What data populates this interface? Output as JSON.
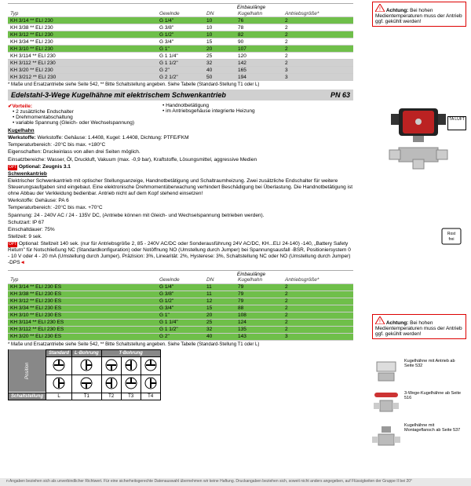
{
  "warning": {
    "label": "Achtung:",
    "text": "Bei hohen Medientemperaturen muss der Antrieb ggf. gekühlt werden!"
  },
  "table1": {
    "superheader": "Einbaulänge",
    "cols": [
      "Typ",
      "Gewinde",
      "DN",
      "Kugelhahn",
      "Antriebsgröße*"
    ],
    "rows": [
      {
        "typ": "KH 3/14 ** ELI 230",
        "g": "G 1/4\"",
        "dn": "10",
        "kh": "76",
        "an": "2",
        "cls": "row-green"
      },
      {
        "typ": "KH 3/38 ** ELI 230",
        "g": "G 3/8\"",
        "dn": "10",
        "kh": "78",
        "an": "2",
        "cls": ""
      },
      {
        "typ": "KH 3/12 ** ELI 230",
        "g": "G 1/2\"",
        "dn": "10",
        "kh": "82",
        "an": "2",
        "cls": "row-green"
      },
      {
        "typ": "KH 3/34 ** ELI 230",
        "g": "G 3/4\"",
        "dn": "15",
        "kh": "90",
        "an": "2",
        "cls": ""
      },
      {
        "typ": "KH 3/10 ** ELI 230",
        "g": "G 1\"",
        "dn": "20",
        "kh": "107",
        "an": "2",
        "cls": "row-green"
      },
      {
        "typ": "KH 3/114 ** ELI 230",
        "g": "G 1 1/4\"",
        "dn": "25",
        "kh": "120",
        "an": "2",
        "cls": ""
      },
      {
        "typ": "KH 3/112 ** ELI 230",
        "g": "G 1 1/2\"",
        "dn": "32",
        "kh": "142",
        "an": "2",
        "cls": "row-grey"
      },
      {
        "typ": "KH 3/20 ** ELI 230",
        "g": "G 2\"",
        "dn": "40",
        "kh": "165",
        "an": "3",
        "cls": "row-grey"
      },
      {
        "typ": "KH 3/212 ** ELI 230",
        "g": "G 2 1/2\"",
        "dn": "50",
        "kh": "194",
        "an": "3",
        "cls": "row-grey"
      }
    ],
    "footnote": "* Maße und Ersatzantriebe siehe Seite 542, ** Bitte Schaltstellung angeben. Siehe Tabelle (Standard-Stellung T1 oder L)"
  },
  "title_bar": {
    "title": "Edelstahl-3-Wege Kugelhähne mit elektrischem Schwenkantrieb",
    "pn": "PN 63"
  },
  "vorteile": {
    "label": "Vorteile:",
    "col1": [
      "2 zusätzliche Endschalter",
      "Drehmomentabschaltung",
      "variable Spannung (Gleich- oder Wechselspannung)"
    ],
    "col2": [
      "Handnotbetätigung",
      "im Antriebsgehäuse integrierte Heizung"
    ]
  },
  "body": {
    "kugelhahn_hd": "Kugelhahn",
    "werkstoffe1": "Werkstoffe: Gehäuse: 1.4408, Kugel: 1.4408, Dichtung: PTFE/FKM",
    "tempbereich1": "Temperaturbereich: -20°C bis max. +180°C",
    "eigenschaften": "Eigenschaften: Druckeinlass von allen drei Seiten möglich.",
    "einsatz": "Einsatzbereiche: Wasser, Öl, Druckluft, Vakuum (max. -0,9 bar), Kraftstoffe, Lösungsmittel, aggressive Medien",
    "optional1": "Optional: Zeugnis 3.1",
    "schwenk_hd": "Schwenkantrieb",
    "schwenk_body": "Elektrischer Schwenkantrieb mit optischer Stellungsanzeige, Handnotbetätigung und Schaltraumheizung. Zwei zusätzliche Endschalter für weitere Steuerungsaufgaben sind eingebaut. Eine elektronische Drehmomentüberwachung verhindert Beschädigung bei Überlastung. Die Handnotbetätigung ist ohne Abbau der Verkleidung bedienbar. Antrieb nicht auf dem Kopf stehend einsetzen!",
    "werkstoffe2": "Werkstoffe: Gehäuse: PA 6",
    "tempbereich2": "Temperaturbereich: -20°C bis max. +70°C",
    "spannung": "Spannung: 24 - 240V AC / 24 - 135V DC, (Antriebe können mit Gleich- und Wechselspannung betrieben werden).",
    "schutzart": "Schutzart: IP 67",
    "einschalt": "Einschaltdauer: 75%",
    "stellzeit": "Stellzeit: 9 sek.",
    "optional2": "Optional: Stellzeit 140 sek. (nur für Antriebsgröße 2, 85 - 240V AC/DC oder Sonderausführung 24V AC/DC, KH...ELI 24-140) -140, „Battery Safety Return\" für Notschließung NC (Standardkonfiguration) oder Notöffnung NO (Umstellung durch Jumper) bei Spannungsausfall -BSR, Positioniersystem 0 - 10 V oder 4 - 20 mA (Umstellung durch Jumper), Präzision: 3%, Linearität: 2%, Hysterese: 3%, Schaltstellung NC oder NO (Umstellung durch Jumper) -DPS"
  },
  "table2": {
    "superheader": "Einbaulänge",
    "cols": [
      "Typ",
      "Gewinde",
      "DN",
      "Kugelhahn",
      "Antriebsgröße*"
    ],
    "rows": [
      {
        "typ": "KH 3/14 ** ELI 230 ES",
        "g": "G 1/4\"",
        "dn": "11",
        "kh": "79",
        "an": "2",
        "cls": "row-green"
      },
      {
        "typ": "KH 3/38 ** ELI 230 ES",
        "g": "G 3/8\"",
        "dn": "11",
        "kh": "79",
        "an": "2",
        "cls": "row-green"
      },
      {
        "typ": "KH 3/12 ** ELI 230 ES",
        "g": "G 1/2\"",
        "dn": "12",
        "kh": "79",
        "an": "2",
        "cls": "row-green"
      },
      {
        "typ": "KH 3/34 ** ELI 230 ES",
        "g": "G 3/4\"",
        "dn": "15",
        "kh": "88",
        "an": "2",
        "cls": "row-green"
      },
      {
        "typ": "KH 3/10 ** ELI 230 ES",
        "g": "G 1\"",
        "dn": "20",
        "kh": "108",
        "an": "2",
        "cls": "row-green"
      },
      {
        "typ": "KH 3/114 ** ELI 230 ES",
        "g": "G 1 1/4\"",
        "dn": "25",
        "kh": "124",
        "an": "2",
        "cls": "row-green"
      },
      {
        "typ": "KH 3/112 ** ELI 230 ES",
        "g": "G 1 1/2\"",
        "dn": "32",
        "kh": "135",
        "an": "2",
        "cls": "row-green"
      },
      {
        "typ": "KH 3/20 ** ELI 230 ES",
        "g": "G 2\"",
        "dn": "40",
        "kh": "143",
        "an": "3",
        "cls": "row-green"
      }
    ],
    "footnote": "* Maße und Ersatzantriebe siehe Seite 542, ** Bitte Schaltstellung angeben. Siehe Tabelle (Standard-Stellung T1 oder L)"
  },
  "bore": {
    "headers": [
      "Standard",
      "L-Bohrung",
      "",
      "T-Bohrung",
      "",
      ""
    ],
    "row_label": "Schaltstellung",
    "cells": [
      "L",
      "T1",
      "T2",
      "T3",
      "T4"
    ]
  },
  "thumbs": [
    {
      "cap": "Kugelhähne mit Antrieb ab Seite 532"
    },
    {
      "cap": "3-Wege-Kugelhähne ab Seite 516"
    },
    {
      "cap": "Kugelhähne mit Montageflansch ab Seite 537"
    }
  ],
  "taluft": "TA LUFT",
  "rostfrei": "Rost frei",
  "bottom": "n Angaben beziehen sich als unverbindlicher Richtwert. Für eine sicherheitsgerechte Datenauswahl übernehmen wir keine Haftung. Druckangaben beziehen sich, soweit nicht anders angegeben, auf Flüssigkeiten der Gruppe II bei 20°"
}
